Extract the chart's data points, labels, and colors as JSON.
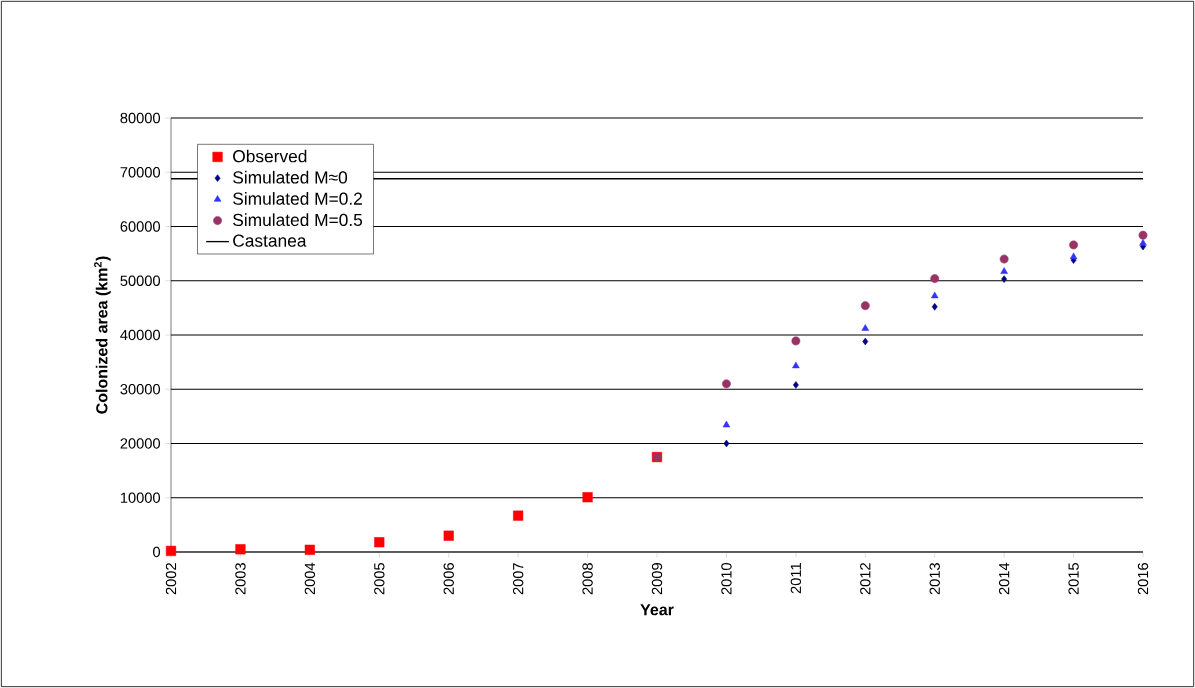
{
  "chart_data": {
    "type": "scatter",
    "xlabel": "Year",
    "ylabel": "Colonized area (km$^{2}$)",
    "xlim": [
      2002,
      2016
    ],
    "xticks": [
      2002,
      2003,
      2004,
      2005,
      2006,
      2007,
      2008,
      2009,
      2010,
      2011,
      2012,
      2013,
      2014,
      2015,
      2016
    ],
    "ylim": [
      0,
      80000
    ],
    "yticks": [
      0,
      10000,
      20000,
      30000,
      40000,
      50000,
      60000,
      70000,
      80000
    ],
    "grid": "y",
    "legend": "top left",
    "series": [
      {
        "name": "Observed",
        "color": "#ff0000",
        "marker": "square",
        "x": [
          2002,
          2003,
          2004,
          2005,
          2006,
          2007,
          2008,
          2009
        ],
        "values": [
          200,
          500,
          400,
          1800,
          3000,
          6700,
          10100,
          17500
        ]
      },
      {
        "name": "Simulated M≈0",
        "color": "#000080",
        "marker": "diamond",
        "x": [
          2010,
          2011,
          2012,
          2013,
          2014,
          2015,
          2016
        ],
        "values": [
          20000,
          30800,
          38800,
          45200,
          50300,
          53800,
          56300
        ]
      },
      {
        "name": "Simulated M=0.2",
        "color": "#3333ff",
        "marker": "triangle",
        "x": [
          2010,
          2011,
          2012,
          2013,
          2014,
          2015,
          2016
        ],
        "values": [
          23400,
          34300,
          41200,
          47200,
          51700,
          54400,
          56900
        ]
      },
      {
        "name": "Simulated M=0.5",
        "color": "#993366",
        "marker": "circle",
        "x": [
          2009,
          2010,
          2011,
          2012,
          2013,
          2014,
          2015,
          2016
        ],
        "values": [
          17500,
          31000,
          38900,
          45400,
          50400,
          54000,
          56600,
          58400
        ]
      },
      {
        "name": "Castanea",
        "type": "line",
        "color": "#000000",
        "marker": "none",
        "line_style": "solid",
        "x": [
          2002,
          2016
        ],
        "values": [
          68800,
          68800
        ]
      }
    ]
  }
}
